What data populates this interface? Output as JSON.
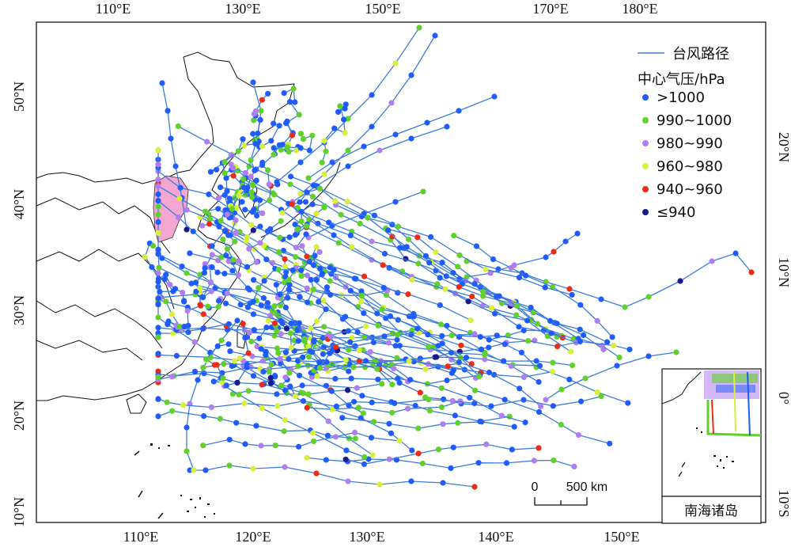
{
  "axes": {
    "top_labels": [
      "110°E",
      "130°E",
      "150°E",
      "170°E",
      "180°E"
    ],
    "bottom_labels": [
      "110°E",
      "120°E",
      "130°E",
      "140°E",
      "150°E"
    ],
    "left_labels": [
      "50°N",
      "40°N",
      "30°N",
      "20°N",
      "10°N"
    ],
    "right_labels": [
      "20°N",
      "10°N",
      "0°",
      "10°S"
    ]
  },
  "legend": {
    "track_label": "台风路径",
    "pressure_title": "中心气压/hPa",
    "items": [
      {
        "label": ">1000",
        "color": "#1f5bff"
      },
      {
        "label": "990~1000",
        "color": "#5fd12a"
      },
      {
        "label": "980~990",
        "color": "#b07ef0"
      },
      {
        "label": "960~980",
        "color": "#d8f03a"
      },
      {
        "label": "940~960",
        "color": "#ee2b14"
      },
      {
        "label": "≤940",
        "color": "#1a1a8c"
      }
    ],
    "track_color": "#3c7ddc"
  },
  "scale_bar": {
    "start": "0",
    "end": "500 km"
  },
  "inset": {
    "label": "南海诸岛"
  },
  "highlight_region_color": "#f2a6d0"
}
